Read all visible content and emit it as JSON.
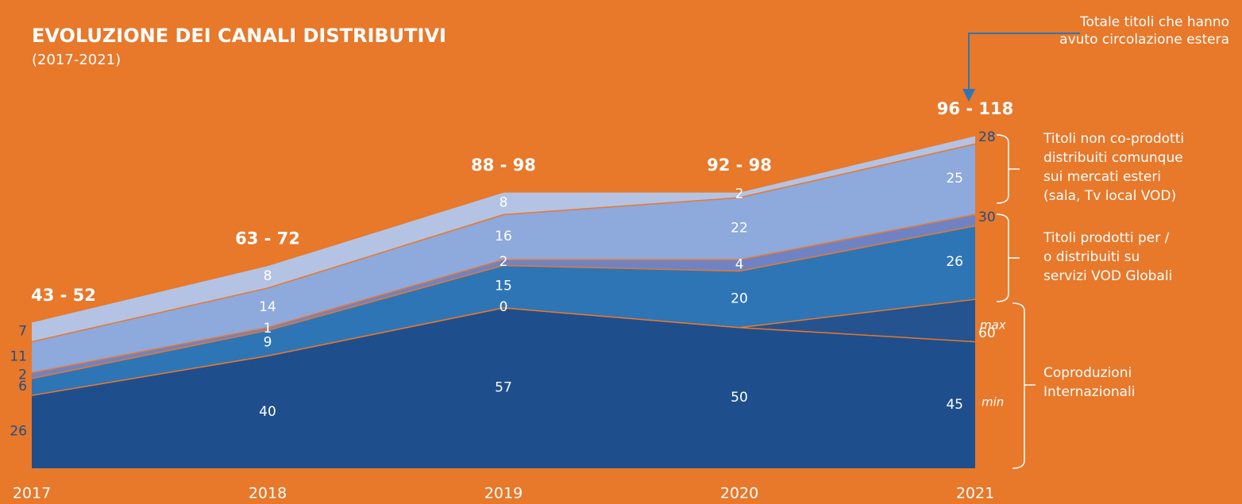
{
  "chart_data": {
    "type": "area",
    "title": "EVOLUZIONE DEI CANALI DISTRIBUTIVI",
    "subtitle": "(2017-2021)",
    "categories": [
      "2017",
      "2018",
      "2019",
      "2020",
      "2021"
    ],
    "series": [
      {
        "color": "#1f4e8c",
        "values": [
          26,
          40,
          57,
          50,
          45
        ]
      },
      {
        "color": "#24538f",
        "values": [
          0,
          0,
          0,
          0,
          15
        ],
        "value_labels": [
          null,
          null,
          "0",
          null,
          null
        ]
      },
      {
        "color": "#2e75b6",
        "values": [
          6,
          9,
          15,
          20,
          26
        ]
      },
      {
        "color": "#6f83c4",
        "values": [
          2,
          1,
          2,
          4,
          4
        ],
        "value_labels": [
          "2",
          "1",
          "2",
          "4",
          null
        ]
      },
      {
        "color": "#8ea9db",
        "values": [
          11,
          14,
          16,
          22,
          25
        ]
      },
      {
        "color": "#b4c3e3",
        "values": [
          7,
          8,
          8,
          2,
          3
        ],
        "value_labels": [
          "7",
          "8",
          "8",
          "2",
          null
        ]
      }
    ],
    "range_labels": [
      "43 - 52",
      "63 - 72",
      "88 - 98",
      "92 - 98",
      "96 - 118"
    ],
    "annotations": [
      {
        "label": "28",
        "value": 28
      },
      {
        "label": "30",
        "value": 30
      },
      {
        "label": "60",
        "value": 60
      }
    ],
    "max_label": "max",
    "min_label": "min",
    "callout": [
      "Totale titoli che hanno",
      "avuto circolazione estera"
    ],
    "group_labels": [
      [
        "Titoli non co-prodotti",
        "distribuiti comunque",
        "sui mercati esteri",
        "(sala, Tv local VOD)"
      ],
      [
        "Titoli prodotti per /",
        "o distribuiti su",
        "servizi VOD Globali"
      ],
      [
        "Coproduzioni",
        "Internazionali"
      ]
    ]
  }
}
